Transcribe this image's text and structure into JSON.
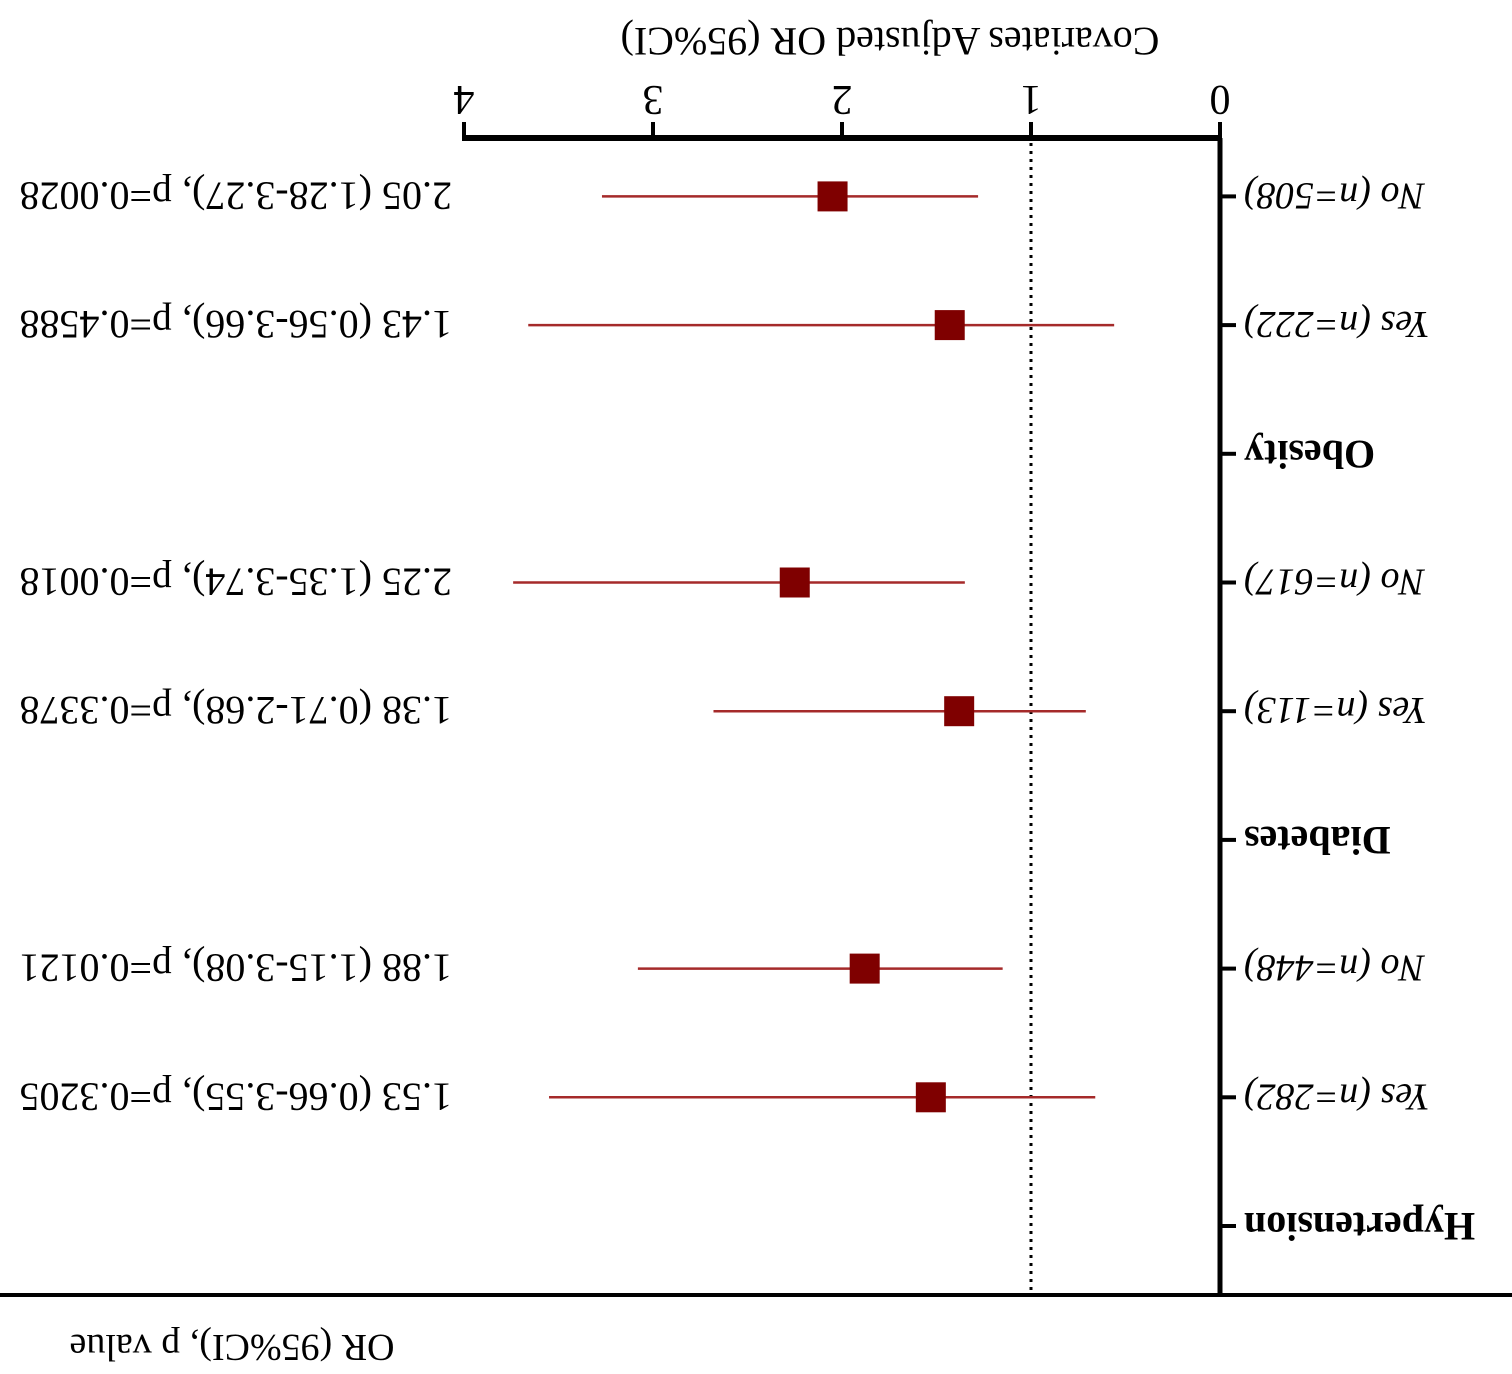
{
  "chart_data": {
    "type": "forest",
    "xlabel": "Covariates Adjusted OR (95%CI)",
    "value_column_header": "OR (95%CI), p value",
    "xlim": [
      0,
      4
    ],
    "x_ticks": [
      "0",
      "1",
      "2",
      "3",
      "4"
    ],
    "reference_line": 1,
    "marker_color": "#7f0000",
    "whisker_color": "#a52a2a",
    "rows": [
      {
        "kind": "group",
        "label": "Hypertension"
      },
      {
        "kind": "item",
        "label": "Yes (n=282)",
        "or": 1.53,
        "ci": [
          0.66,
          3.55
        ],
        "text": "1.53 (0.66-3.55), p=0.3205"
      },
      {
        "kind": "item",
        "label": "No  (n=448)",
        "or": 1.88,
        "ci": [
          1.15,
          3.08
        ],
        "text": "1.88 (1.15-3.08), p=0.0121"
      },
      {
        "kind": "group",
        "label": "Diabetes"
      },
      {
        "kind": "item",
        "label": "Yes (n=113)",
        "or": 1.38,
        "ci": [
          0.71,
          2.68
        ],
        "text": "1.38 (0.71-2.68), p=0.3378"
      },
      {
        "kind": "item",
        "label": "No (n=617)",
        "or": 2.25,
        "ci": [
          1.35,
          3.74
        ],
        "text": "2.25 (1.35-3.74), p=0.0018"
      },
      {
        "kind": "group",
        "label": "Obesity"
      },
      {
        "kind": "item",
        "label": "Yes (n=222)",
        "or": 1.43,
        "ci": [
          0.56,
          3.66
        ],
        "text": "1.43 (0.56-3.66), p=0.4588"
      },
      {
        "kind": "item",
        "label": "No (n=508)",
        "or": 2.05,
        "ci": [
          1.28,
          3.27
        ],
        "text": "2.05 (1.28-3.27), p=0.0028"
      }
    ]
  }
}
